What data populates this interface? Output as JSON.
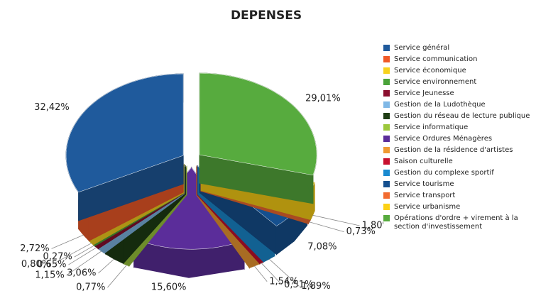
{
  "chart_data": {
    "type": "pie",
    "title": "DEPENSES",
    "categories": [
      "Service général",
      "Service communication",
      "Service économique",
      "Service environnement",
      "Service Jeunesse",
      "Gestion de la Ludothèque",
      "Gestion du réseau de lecture publique",
      "Service informatique",
      "Service Ordures Ménagères",
      "Gestion de la résidence d'artistes",
      "Saison culturelle",
      "Gestion du complexe sportif",
      "Service tourisme",
      "Service transport",
      "Service urbanisme",
      "Opérations d'ordre + virement à la section d'investissement"
    ],
    "values": [
      32.42,
      2.72,
      0.8,
      0.27,
      0.65,
      1.15,
      3.06,
      0.77,
      15.6,
      1.54,
      0.51,
      1.89,
      7.08,
      0.73,
      1.8,
      29.01
    ],
    "value_labels": [
      "32,42%",
      "2,72%",
      "0,80%",
      "0,27%",
      "0,65%",
      "1,15%",
      "3,06%",
      "0,77%",
      "15,60%",
      "1,54%",
      "0,51%",
      "1,89%",
      "7,08%",
      "0,73%",
      "1,80%",
      "29,01%"
    ],
    "colors": [
      "#1f5a9c",
      "#f05a28",
      "#f7d21e",
      "#4aa33a",
      "#8b0f2e",
      "#7fb8e6",
      "#1e3d14",
      "#9cc83c",
      "#5b2d9a",
      "#f09a32",
      "#c8102e",
      "#1a8ad0",
      "#15508f",
      "#f26b30",
      "#fcd116",
      "#57ab3e"
    ]
  }
}
